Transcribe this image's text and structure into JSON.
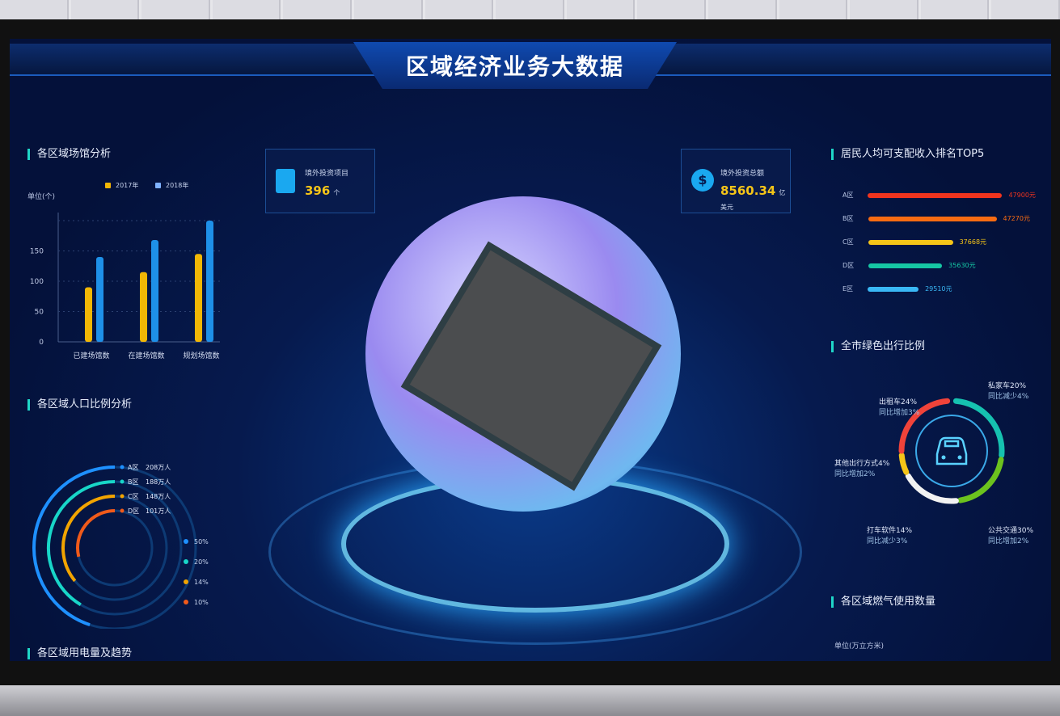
{
  "title": "区域经济业务大数据",
  "bar_section": {
    "title": "各区域场馆分析",
    "unit": "单位(个)",
    "legend": [
      "2017年",
      "2018年"
    ]
  },
  "chart_data": {
    "type": "bar",
    "categories": [
      "已建场馆数",
      "在建场馆数",
      "规划场馆数"
    ],
    "series": [
      {
        "name": "2017年",
        "values": [
          90,
          115,
          145
        ],
        "color": "#f2b705"
      },
      {
        "name": "2018年",
        "values": [
          140,
          168,
          200
        ],
        "color": "#1e90e8"
      }
    ],
    "yticks": [
      "0",
      "50",
      "100",
      "150"
    ],
    "ylim": [
      0,
      200
    ],
    "ylabel": "单位(个)",
    "grid": true
  },
  "population": {
    "title": "各区域人口比例分析",
    "items": [
      {
        "name": "A区",
        "value": "208万人",
        "color": "#1e90ff"
      },
      {
        "name": "B区",
        "value": "188万人",
        "color": "#18d6c8"
      },
      {
        "name": "C区",
        "value": "148万人",
        "color": "#f2a400"
      },
      {
        "name": "D区",
        "value": "101万人",
        "color": "#f05a1a"
      }
    ],
    "percents": [
      "50%",
      "20%",
      "14%",
      "10%"
    ]
  },
  "electric": {
    "title": "各区域用电量及趋势"
  },
  "card1": {
    "label": "境外投资项目",
    "value": "396",
    "unit": "个"
  },
  "card2": {
    "label": "境外投资总额",
    "value": "8560.34",
    "unit": "亿美元"
  },
  "income": {
    "title": "居民人均可支配收入排名TOP5",
    "items": [
      {
        "name": "A区",
        "value": "47900元",
        "fraction": 1.0,
        "color": "#f0341e"
      },
      {
        "name": "B区",
        "value": "47270元",
        "fraction": 0.96,
        "color": "#f76b12"
      },
      {
        "name": "C区",
        "value": "37668元",
        "fraction": 0.63,
        "color": "#f5c518"
      },
      {
        "name": "D区",
        "value": "35630元",
        "fraction": 0.55,
        "color": "#16c7a4"
      },
      {
        "name": "E区",
        "value": "29510元",
        "fraction": 0.38,
        "color": "#3ab8f5"
      }
    ]
  },
  "travel": {
    "title": "全市绿色出行比例",
    "items": [
      {
        "label": "私家车20%",
        "sub": "同比减少4%",
        "color": "#16c2b0"
      },
      {
        "label": "出租车24%",
        "sub": "同比增加3%",
        "color": "#f0433a"
      },
      {
        "label": "其他出行方式4%",
        "sub": "同比增加2%",
        "color": "#f5c518"
      },
      {
        "label": "打车软件14%",
        "sub": "同比减少3%",
        "color": "#f2f2f2"
      },
      {
        "label": "公共交通30%",
        "sub": "同比增加2%",
        "color": "#6cc21e"
      }
    ]
  },
  "gas": {
    "title": "各区域燃气使用数量",
    "unit": "单位(万立方米)"
  }
}
